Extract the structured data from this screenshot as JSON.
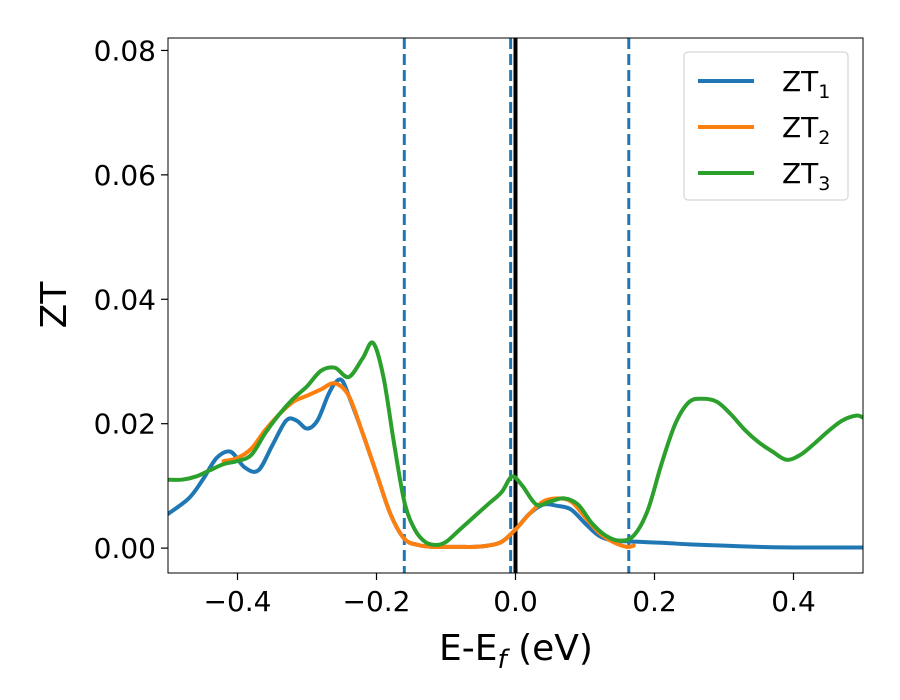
{
  "chart_data": {
    "type": "line",
    "xlabel": "E-E_f (eV)",
    "xlabel_main": "E-E",
    "xlabel_sub": "f",
    "xlabel_tail": " (eV)",
    "ylabel": "ZT",
    "xlim": [
      -0.5,
      0.5
    ],
    "ylim": [
      -0.004,
      0.082
    ],
    "x_ticks": [
      -0.4,
      -0.2,
      0.0,
      0.2,
      0.4
    ],
    "x_tick_labels": [
      "−0.4",
      "−0.2",
      "0.0",
      "0.2",
      "0.4"
    ],
    "y_ticks": [
      0.0,
      0.02,
      0.04,
      0.06,
      0.08
    ],
    "y_tick_labels": [
      "0.00",
      "0.02",
      "0.04",
      "0.06",
      "0.08"
    ],
    "grid": false,
    "legend_position": "top-right",
    "vlines": [
      {
        "x": -0.16,
        "style": "dashed",
        "color": "#1f77b4"
      },
      {
        "x": -0.007,
        "style": "dashed",
        "color": "#1f77b4"
      },
      {
        "x": 0.0,
        "style": "solid",
        "color": "#000000"
      },
      {
        "x": 0.163,
        "style": "dashed",
        "color": "#1f77b4"
      }
    ],
    "series": [
      {
        "name": "ZT1",
        "label_main": "ZT",
        "label_sub": "1",
        "color": "#1f77b4",
        "x": [
          -0.5,
          -0.47,
          -0.45,
          -0.43,
          -0.41,
          -0.39,
          -0.37,
          -0.35,
          -0.33,
          -0.315,
          -0.3,
          -0.285,
          -0.27,
          -0.26,
          -0.25,
          -0.24,
          -0.22,
          -0.2,
          -0.18,
          -0.16,
          -0.14,
          -0.12,
          -0.1,
          -0.08,
          -0.06,
          -0.04,
          -0.02,
          0.0,
          0.02,
          0.04,
          0.06,
          0.08,
          0.1,
          0.12,
          0.14,
          0.16,
          0.18,
          0.2,
          0.22,
          0.25,
          0.3,
          0.35,
          0.4,
          0.45,
          0.5
        ],
        "y": [
          0.0055,
          0.008,
          0.011,
          0.0145,
          0.0155,
          0.013,
          0.0125,
          0.0165,
          0.0205,
          0.0205,
          0.0192,
          0.0205,
          0.0245,
          0.0265,
          0.027,
          0.0245,
          0.0185,
          0.012,
          0.0055,
          0.0015,
          0.0005,
          0.0002,
          0.0002,
          0.0002,
          0.0002,
          0.0004,
          0.001,
          0.003,
          0.0055,
          0.007,
          0.0068,
          0.0062,
          0.004,
          0.002,
          0.0012,
          0.0011,
          0.001,
          0.0009,
          0.0008,
          0.0006,
          0.0004,
          0.0002,
          0.0001,
          0.0001,
          0.0001
        ]
      },
      {
        "name": "ZT2",
        "label_main": "ZT",
        "label_sub": "2",
        "color": "#ff7f0e",
        "x": [
          -0.42,
          -0.4,
          -0.38,
          -0.36,
          -0.34,
          -0.32,
          -0.3,
          -0.28,
          -0.26,
          -0.24,
          -0.22,
          -0.2,
          -0.18,
          -0.16,
          -0.14,
          -0.12,
          -0.1,
          -0.08,
          -0.06,
          -0.04,
          -0.02,
          0.0,
          0.02,
          0.04,
          0.06,
          0.08,
          0.1,
          0.12,
          0.14,
          0.16,
          0.17
        ],
        "y": [
          0.014,
          0.0145,
          0.016,
          0.019,
          0.0215,
          0.0235,
          0.0245,
          0.0255,
          0.0265,
          0.0245,
          0.0185,
          0.012,
          0.0055,
          0.0015,
          0.0005,
          0.0002,
          0.0002,
          0.0002,
          0.0002,
          0.0004,
          0.001,
          0.003,
          0.0055,
          0.0075,
          0.008,
          0.0075,
          0.005,
          0.0025,
          0.001,
          0.0002,
          0.0004
        ]
      },
      {
        "name": "ZT3",
        "label_main": "ZT",
        "label_sub": "3",
        "color": "#2ca02c",
        "x": [
          -0.5,
          -0.48,
          -0.46,
          -0.44,
          -0.42,
          -0.4,
          -0.38,
          -0.36,
          -0.34,
          -0.32,
          -0.3,
          -0.28,
          -0.26,
          -0.24,
          -0.22,
          -0.205,
          -0.19,
          -0.175,
          -0.16,
          -0.145,
          -0.13,
          -0.115,
          -0.1,
          -0.08,
          -0.06,
          -0.04,
          -0.02,
          -0.005,
          0.01,
          0.03,
          0.05,
          0.07,
          0.09,
          0.11,
          0.13,
          0.15,
          0.17,
          0.19,
          0.21,
          0.23,
          0.25,
          0.27,
          0.29,
          0.31,
          0.33,
          0.35,
          0.37,
          0.39,
          0.41,
          0.43,
          0.45,
          0.47,
          0.49,
          0.5
        ],
        "y": [
          0.011,
          0.011,
          0.0115,
          0.0125,
          0.0135,
          0.014,
          0.015,
          0.0185,
          0.0215,
          0.024,
          0.026,
          0.0285,
          0.029,
          0.0275,
          0.0305,
          0.033,
          0.0275,
          0.017,
          0.0075,
          0.003,
          0.001,
          0.0005,
          0.001,
          0.003,
          0.005,
          0.007,
          0.009,
          0.0115,
          0.01,
          0.007,
          0.0075,
          0.008,
          0.007,
          0.004,
          0.002,
          0.0012,
          0.002,
          0.006,
          0.0135,
          0.02,
          0.0235,
          0.024,
          0.0235,
          0.0215,
          0.019,
          0.017,
          0.0155,
          0.0142,
          0.015,
          0.0168,
          0.0188,
          0.0205,
          0.0213,
          0.021
        ]
      }
    ]
  }
}
